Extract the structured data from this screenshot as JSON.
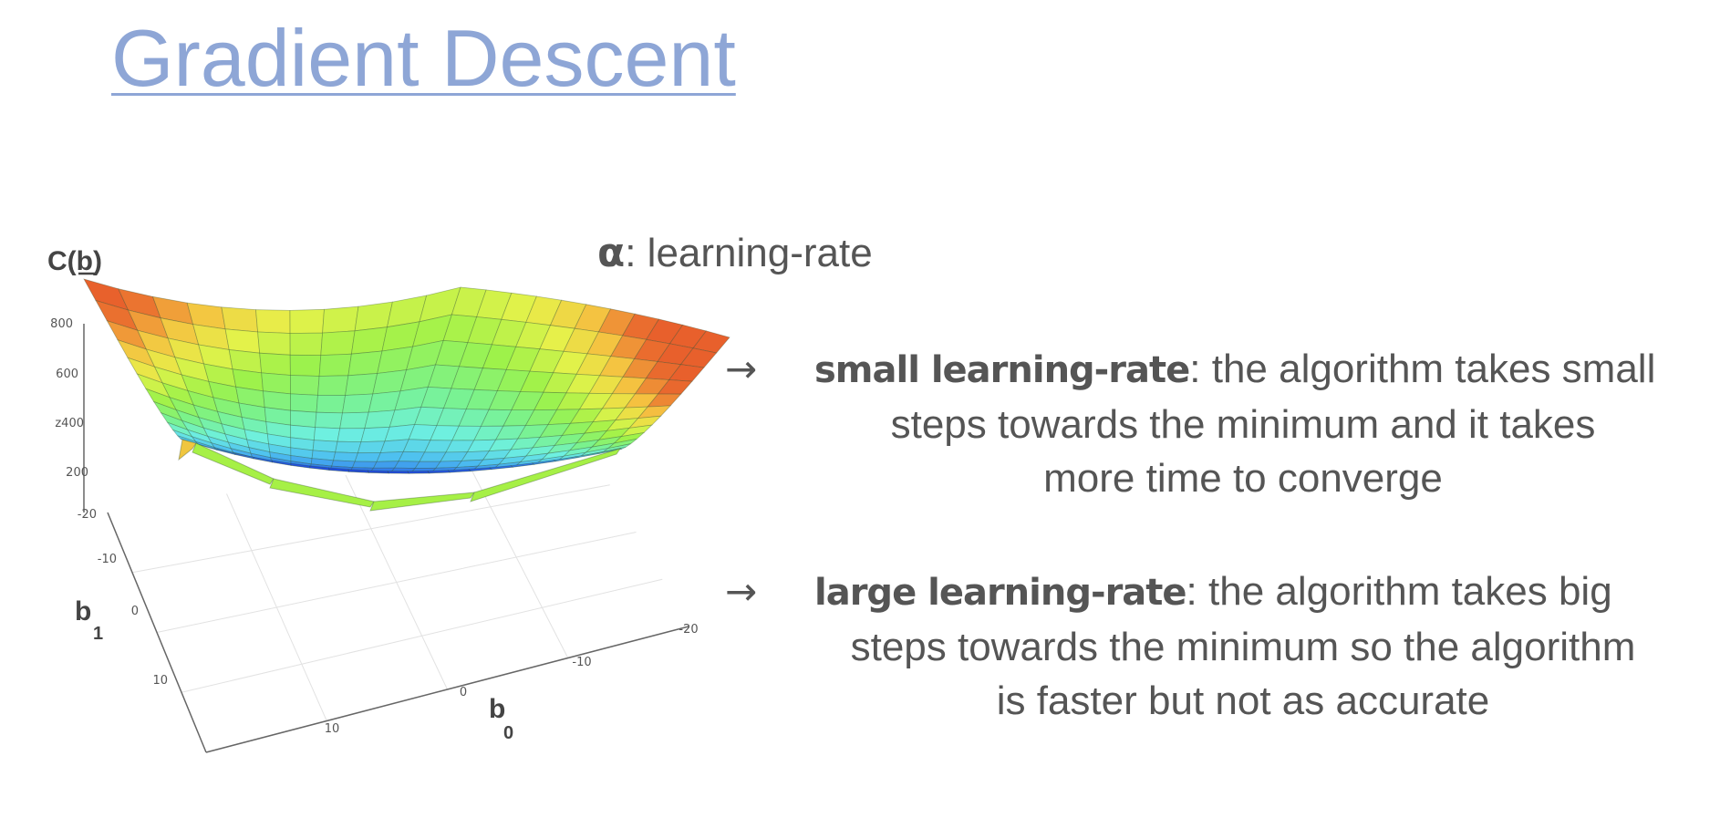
{
  "title": "Gradient Descent",
  "plot": {
    "z_axis_label": "C(b)",
    "x_axis_label": "b",
    "x_axis_subscript": "0",
    "y_axis_label": "b",
    "y_axis_subscript": "1",
    "z_ticks": [
      "800",
      "600",
      "z400",
      "200"
    ],
    "x_ticks": [
      "10",
      "0",
      "-10",
      "-20"
    ],
    "y_ticks": [
      "-20",
      "-10",
      "0",
      "10"
    ],
    "colormap": [
      "#1f3fd9",
      "#2e74ea",
      "#4ec0f0",
      "#6ef0e0",
      "#7af28c",
      "#9ef24a",
      "#e6f24a",
      "#f5c040",
      "#e8602c"
    ]
  },
  "alpha_line": {
    "symbol": "α",
    "text": ": learning-rate"
  },
  "bullets": [
    {
      "arrow": "→",
      "term": "small learning-rate",
      "rest": ": the algorithm takes small",
      "lines": [
        "steps towards the minimum and it takes",
        "more time to converge"
      ]
    },
    {
      "arrow": "→",
      "term": "large learning-rate",
      "rest": ": the algorithm takes big",
      "lines": [
        "steps towards the minimum so the algorithm",
        "is faster but not as accurate"
      ]
    }
  ]
}
